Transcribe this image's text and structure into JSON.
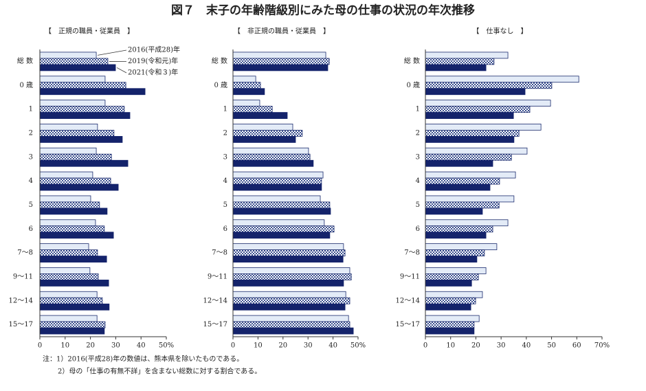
{
  "title": "図７　末子の年齢階級別にみた母の仕事の状況の年次推移",
  "notes": [
    "注：1）2016(平成28)年の数値は、熊本県を除いたものである。",
    "2）母の「仕事の有無不詳」を含まない総数に対する割合である。"
  ],
  "chart_data": [
    {
      "type": "bar",
      "orientation": "horizontal",
      "title": "【　正規の職員・従業員　】",
      "categories": [
        "総 数",
        "0 歳",
        "1",
        "2",
        "3",
        "4",
        "5",
        "6",
        "7～8",
        "9～11",
        "12～14",
        "15～17"
      ],
      "series": [
        {
          "name": "2016(平成28)年",
          "color": "#e3ebf7",
          "values": [
            22.3,
            25.8,
            25.8,
            22.8,
            22.3,
            20.9,
            20.1,
            22.0,
            19.3,
            19.8,
            22.6,
            22.6
          ]
        },
        {
          "name": "2019(令和元)年",
          "color": "#7f97c4",
          "pattern": "checker",
          "values": [
            26.9,
            34.0,
            33.4,
            29.3,
            28.3,
            28.0,
            23.6,
            25.5,
            22.8,
            23.1,
            24.7,
            25.8
          ]
        },
        {
          "name": "2021(令和３)年",
          "color": "#14236b",
          "values": [
            29.9,
            41.6,
            35.6,
            32.6,
            34.8,
            31.0,
            26.6,
            29.1,
            26.4,
            27.2,
            27.4,
            25.5
          ]
        }
      ],
      "xlim": [
        0,
        50
      ],
      "xticks": [
        0,
        10,
        20,
        30,
        40,
        {
          "value": 50,
          "label": "50%"
        }
      ]
    },
    {
      "type": "bar",
      "orientation": "horizontal",
      "title": "【　非正規の職員・従業員　】",
      "categories": [
        "総 数",
        "0 歳",
        "1",
        "2",
        "3",
        "4",
        "5",
        "6",
        "7～8",
        "9～11",
        "12～14",
        "15～17"
      ],
      "series": [
        {
          "color": "#e3ebf7",
          "values": [
            37.1,
            9.1,
            10.7,
            23.9,
            30.2,
            36.0,
            34.9,
            36.5,
            44.2,
            46.7,
            45.1,
            46.2
          ]
        },
        {
          "color": "#7f97c4",
          "pattern": "checker",
          "values": [
            38.5,
            11.0,
            15.7,
            27.7,
            30.8,
            35.4,
            38.7,
            40.4,
            44.8,
            47.3,
            46.7,
            46.7
          ]
        },
        {
          "color": "#14236b",
          "values": [
            37.9,
            12.6,
            21.7,
            25.0,
            32.1,
            35.4,
            39.0,
            38.7,
            44.0,
            44.2,
            44.8,
            48.1
          ]
        }
      ],
      "xlim": [
        0,
        50
      ],
      "xticks": [
        0,
        10,
        20,
        30,
        40,
        {
          "value": 50,
          "label": "50%"
        }
      ]
    },
    {
      "type": "bar",
      "orientation": "horizontal",
      "title": "【　仕事なし　】",
      "categories": [
        "総 数",
        "0 歳",
        "1",
        "2",
        "3",
        "4",
        "5",
        "6",
        "7～8",
        "9～11",
        "12～14",
        "15～17"
      ],
      "series": [
        {
          "color": "#e3ebf7",
          "values": [
            32.7,
            60.8,
            49.6,
            45.8,
            40.3,
            35.7,
            35.1,
            32.7,
            28.3,
            24.0,
            22.6,
            21.3
          ]
        },
        {
          "color": "#7f97c4",
          "pattern": "checker",
          "values": [
            27.2,
            50.1,
            41.4,
            37.1,
            34.1,
            29.4,
            29.2,
            26.7,
            23.4,
            21.0,
            19.9,
            19.3
          ]
        },
        {
          "color": "#14236b",
          "values": [
            24.0,
            39.5,
            34.9,
            35.1,
            26.7,
            25.6,
            22.6,
            24.0,
            20.4,
            18.3,
            18.0,
            19.3
          ]
        }
      ],
      "xlim": [
        0,
        70
      ],
      "xticks": [
        0,
        10,
        20,
        30,
        40,
        50,
        60,
        {
          "value": 70,
          "label": "70%"
        }
      ]
    }
  ]
}
